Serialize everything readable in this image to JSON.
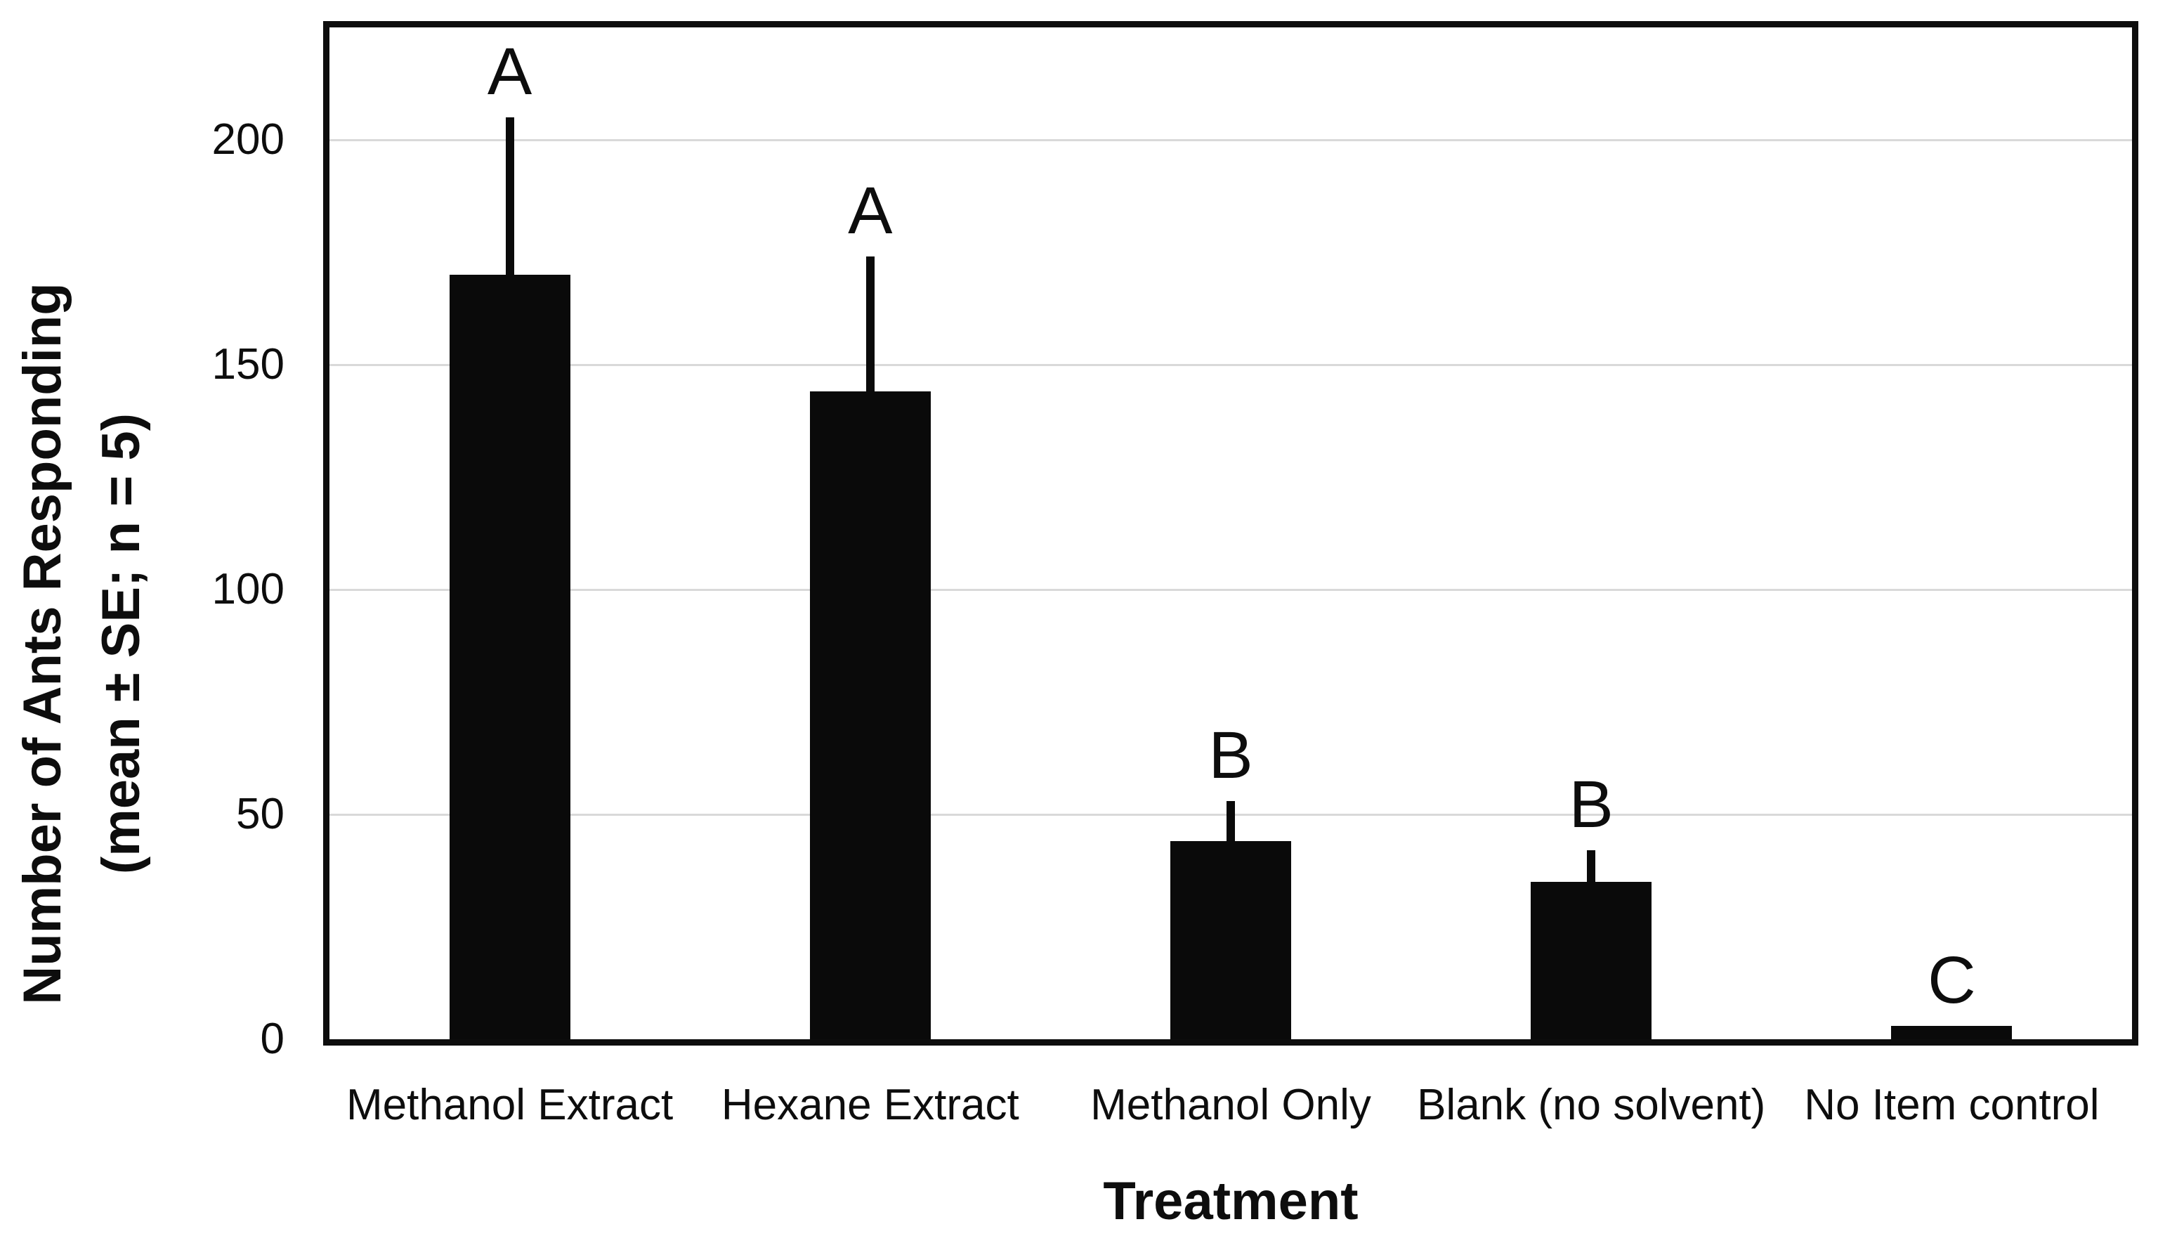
{
  "chart_data": {
    "type": "bar",
    "xlabel": "Treatment",
    "ylabel_line1": "Number of Ants Responding",
    "ylabel_line2": "(mean ± SE; n = 5)",
    "categories": [
      "Methanol Extract",
      "Hexane Extract",
      "Methanol Only",
      "Blank (no solvent)",
      "No Item control"
    ],
    "values": [
      170,
      144,
      44,
      35,
      3
    ],
    "errors_se": [
      35,
      30,
      9,
      7,
      0
    ],
    "sig_letters": [
      "A",
      "A",
      "B",
      "B",
      "C"
    ],
    "yticks": [
      0,
      50,
      100,
      150,
      200
    ],
    "ylim": [
      0,
      225
    ],
    "grid": true,
    "legend": false,
    "bar_color": "#0a0a0a",
    "error_bar_color": "#0a0a0a",
    "gridline_color": "#d9d9d9",
    "axis_color": "#0d0d0d",
    "text_color": "#0d0d0d",
    "background_color": "#ffffff"
  }
}
